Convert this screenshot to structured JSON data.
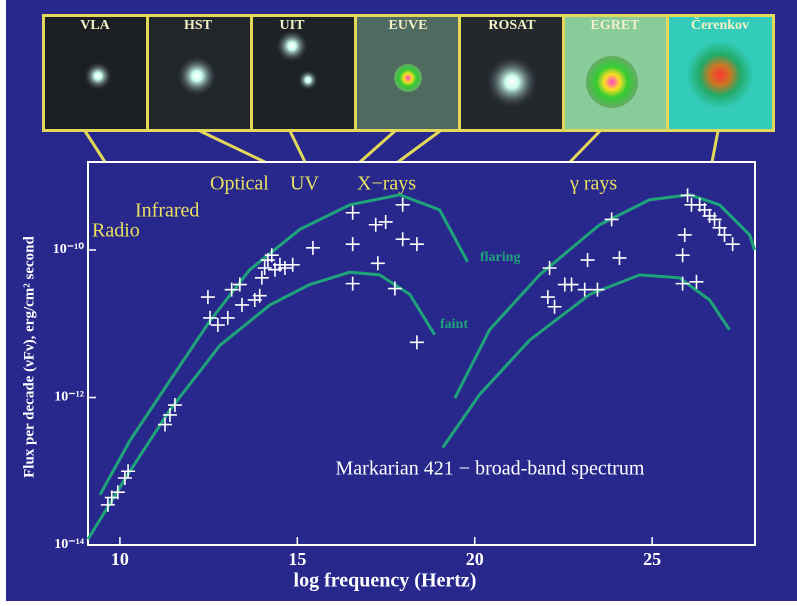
{
  "chart_data": {
    "type": "scatter",
    "title": "Markarian 421 − broad-band spectrum",
    "xlabel": "log frequency (Hertz)",
    "ylabel": "Flux per decade (νFν), erg/cm² second",
    "yscale": "log",
    "xlim": [
      9.1,
      27.9
    ],
    "ylim": [
      1e-14,
      1.56e-09
    ],
    "xticks": [
      10,
      15,
      20,
      25
    ],
    "yticks": [
      {
        "value": 1e-14,
        "label": "10⁻¹⁴"
      },
      {
        "value": 1e-12,
        "label": "10⁻¹²"
      },
      {
        "value": 1e-10,
        "label": "10⁻¹⁰"
      }
    ],
    "instruments": [
      "VLA",
      "HST",
      "UIT",
      "EUVE",
      "ROSAT",
      "EGRET",
      "Čerenkov"
    ],
    "annotations": [
      "Radio",
      "Infrared",
      "Optical",
      "UV",
      "X−rays",
      "γ rays"
    ],
    "series": [
      {
        "style": "points",
        "color": "#ffffff",
        "x": [
          9.66,
          9.77,
          9.94,
          10.14,
          10.23,
          11.27,
          11.41,
          11.55,
          12.48,
          12.54,
          12.76,
          13.04,
          13.15,
          13.38,
          13.44,
          13.8,
          13.94,
          14.0,
          14.08,
          14.17,
          14.28,
          14.37,
          14.51,
          14.65,
          14.87,
          15.44,
          16.56,
          16.56,
          16.56,
          17.21,
          17.27,
          17.49,
          17.75,
          17.97,
          17.97,
          18.37,
          18.37,
          22.11,
          22.06,
          22.25,
          22.54,
          22.73,
          23.1,
          23.18,
          23.46,
          23.86,
          24.08,
          25.86,
          25.86,
          25.92,
          26.0,
          26.11,
          26.25,
          26.34,
          26.48,
          26.62,
          26.76,
          26.9,
          27.04,
          27.27
        ],
        "values": [
          3.5e-14,
          4.4e-14,
          5.2e-14,
          8.1e-14,
          1e-13,
          4.3e-13,
          5.8e-13,
          7.9e-13,
          2.3e-11,
          1.2e-11,
          9.6e-12,
          1.2e-11,
          2.9e-11,
          3.4e-11,
          1.8e-11,
          2.1e-11,
          2.4e-11,
          4.2e-11,
          5.7e-11,
          7.3e-11,
          8.5e-11,
          5.4e-11,
          6.3e-11,
          5.7e-11,
          6.3e-11,
          1.07e-10,
          3.2e-10,
          1.2e-10,
          3.5e-11,
          2.2e-10,
          6.6e-11,
          2.4e-10,
          3e-11,
          4.1e-10,
          1.4e-10,
          1.2e-10,
          5.6e-12,
          5.7e-11,
          2.3e-11,
          1.7e-11,
          3.4e-11,
          3.4e-11,
          2.9e-11,
          7.3e-11,
          2.9e-11,
          2.6e-10,
          7.8e-11,
          8.5e-11,
          3.5e-11,
          1.6e-10,
          5.5e-10,
          4.1e-10,
          3.7e-11,
          4.1e-10,
          3.5e-10,
          2.9e-10,
          2.6e-10,
          2e-10,
          1.6e-10,
          1.2e-10
        ]
      },
      {
        "style": "line",
        "name": "flaring",
        "color": "#1fa37a",
        "x": [
          9.44,
          10.28,
          11.41,
          12.54,
          13.66,
          15.07,
          16.48,
          17.89,
          19.01,
          19.8
        ],
        "values": [
          4.8e-14,
          2.6e-13,
          1.7e-12,
          1.1e-11,
          5.4e-11,
          1.9e-10,
          4.1e-10,
          5.6e-10,
          3.5e-10,
          6.9e-11
        ]
      },
      {
        "style": "line",
        "name": "faint",
        "color": "#1fa37a",
        "x": [
          9.1,
          10.28,
          11.41,
          12.82,
          14.23,
          15.35,
          16.48,
          17.32,
          18.17,
          18.87
        ],
        "values": [
          1.2e-14,
          1e-13,
          6.8e-13,
          5.1e-12,
          1.8e-11,
          3.4e-11,
          5e-11,
          4.6e-11,
          2.5e-11,
          7.1e-12
        ]
      },
      {
        "style": "line",
        "color": "#1fa37a",
        "x": [
          19.44,
          20.42,
          21.83,
          23.52,
          24.93,
          26.06,
          26.9,
          27.75,
          27.89
        ],
        "values": [
          9.8e-13,
          8.3e-12,
          4.6e-11,
          2.2e-10,
          4.8e-10,
          5.6e-10,
          4.1e-10,
          1.6e-10,
          1e-10
        ]
      },
      {
        "style": "line",
        "color": "#1fa37a",
        "x": [
          19.1,
          20.14,
          21.55,
          23.24,
          24.65,
          25.77,
          26.62,
          27.18
        ],
        "values": [
          2.1e-13,
          1.1e-12,
          6e-12,
          2.5e-11,
          4.6e-11,
          4.2e-11,
          2.1e-11,
          8.3e-12
        ]
      }
    ]
  }
}
